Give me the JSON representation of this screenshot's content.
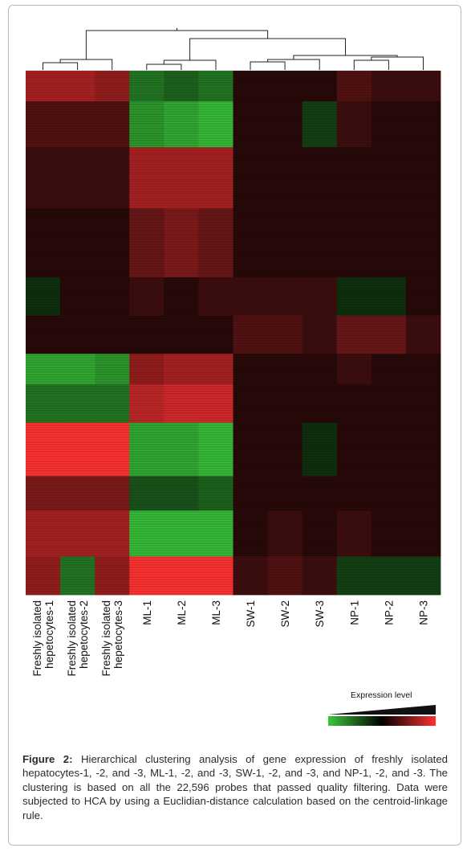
{
  "chart_data": {
    "type": "heatmap",
    "columns": [
      [
        "Freshly isolated",
        "hepetocytes-1"
      ],
      [
        "Freshly isolated",
        "hepetocytes-2"
      ],
      [
        "Freshly isolated",
        "hepetocytes-3"
      ],
      [
        "ML-1"
      ],
      [
        "ML-2"
      ],
      [
        "ML-3"
      ],
      [
        "SW-1"
      ],
      [
        "SW-2"
      ],
      [
        "SW-3"
      ],
      [
        "NP-1"
      ],
      [
        "NP-2"
      ],
      [
        "NP-3"
      ]
    ],
    "row_count": 22596,
    "dendrogram": "hierarchical clustering (HCA), Euclidean distance, centroid linkage",
    "blocks": [
      {
        "rows": 40,
        "values": [
          0.6,
          0.6,
          0.5,
          -0.5,
          -0.4,
          -0.5,
          0.0,
          0.0,
          0.0,
          0.2,
          0.1,
          0.1
        ]
      },
      {
        "rows": 60,
        "values": [
          0.2,
          0.2,
          0.2,
          -0.7,
          -0.8,
          -0.9,
          0.0,
          0.0,
          -0.2,
          0.1,
          0.0,
          0.0
        ]
      },
      {
        "rows": 80,
        "values": [
          0.1,
          0.1,
          0.1,
          0.6,
          0.6,
          0.6,
          0.0,
          0.0,
          0.0,
          0.0,
          0.0,
          0.0
        ]
      },
      {
        "rows": 90,
        "values": [
          0.0,
          0.0,
          0.0,
          0.3,
          0.4,
          0.3,
          0.0,
          0.0,
          0.0,
          0.0,
          0.0,
          0.0
        ]
      },
      {
        "rows": 50,
        "values": [
          -0.1,
          0.0,
          0.0,
          0.1,
          0.0,
          0.1,
          0.1,
          0.1,
          0.1,
          -0.1,
          -0.1,
          0.0
        ]
      },
      {
        "rows": 50,
        "values": [
          0.0,
          0.0,
          0.0,
          0.0,
          0.0,
          0.0,
          0.2,
          0.2,
          0.1,
          0.3,
          0.3,
          0.1
        ]
      },
      {
        "rows": 40,
        "values": [
          -0.8,
          -0.8,
          -0.7,
          0.5,
          0.6,
          0.6,
          0.0,
          0.0,
          0.0,
          0.1,
          0.0,
          0.0
        ]
      },
      {
        "rows": 50,
        "values": [
          -0.5,
          -0.5,
          -0.5,
          0.7,
          0.8,
          0.8,
          0.0,
          0.0,
          0.0,
          0.0,
          0.0,
          0.0
        ]
      },
      {
        "rows": 70,
        "values": [
          1.0,
          1.0,
          1.0,
          -0.8,
          -0.8,
          -0.9,
          0.0,
          0.0,
          -0.1,
          0.0,
          0.0,
          0.0
        ]
      },
      {
        "rows": 45,
        "values": [
          0.4,
          0.4,
          0.4,
          -0.3,
          -0.3,
          -0.4,
          0.0,
          0.0,
          0.0,
          0.0,
          0.0,
          0.0
        ]
      },
      {
        "rows": 60,
        "values": [
          0.6,
          0.6,
          0.6,
          -0.9,
          -0.9,
          -0.9,
          0.0,
          0.1,
          0.0,
          0.1,
          0.0,
          0.0
        ]
      },
      {
        "rows": 50,
        "values": [
          0.5,
          -0.5,
          0.5,
          1.0,
          1.0,
          1.0,
          0.1,
          0.2,
          0.1,
          -0.2,
          -0.2,
          -0.2
        ]
      }
    ],
    "legend": {
      "title": "Expression level",
      "scale": [
        "green",
        "black",
        "red"
      ],
      "colors": {
        "low": "#3cc63c",
        "mid": "#000000",
        "high": "#ff3030"
      }
    }
  },
  "caption": {
    "label": "Figure 2:",
    "text": " Hierarchical clustering analysis of gene expression of freshly isolated hepatocytes-1, -2, and -3, ML-1, -2, and -3, SW-1, -2, and -3, and NP-1, -2, and -3. The clustering is based on all the 22,596 probes that passed quality filtering. Data were subjected to HCA by using a Euclidian-distance calculation based on the centroid-linkage rule."
  }
}
